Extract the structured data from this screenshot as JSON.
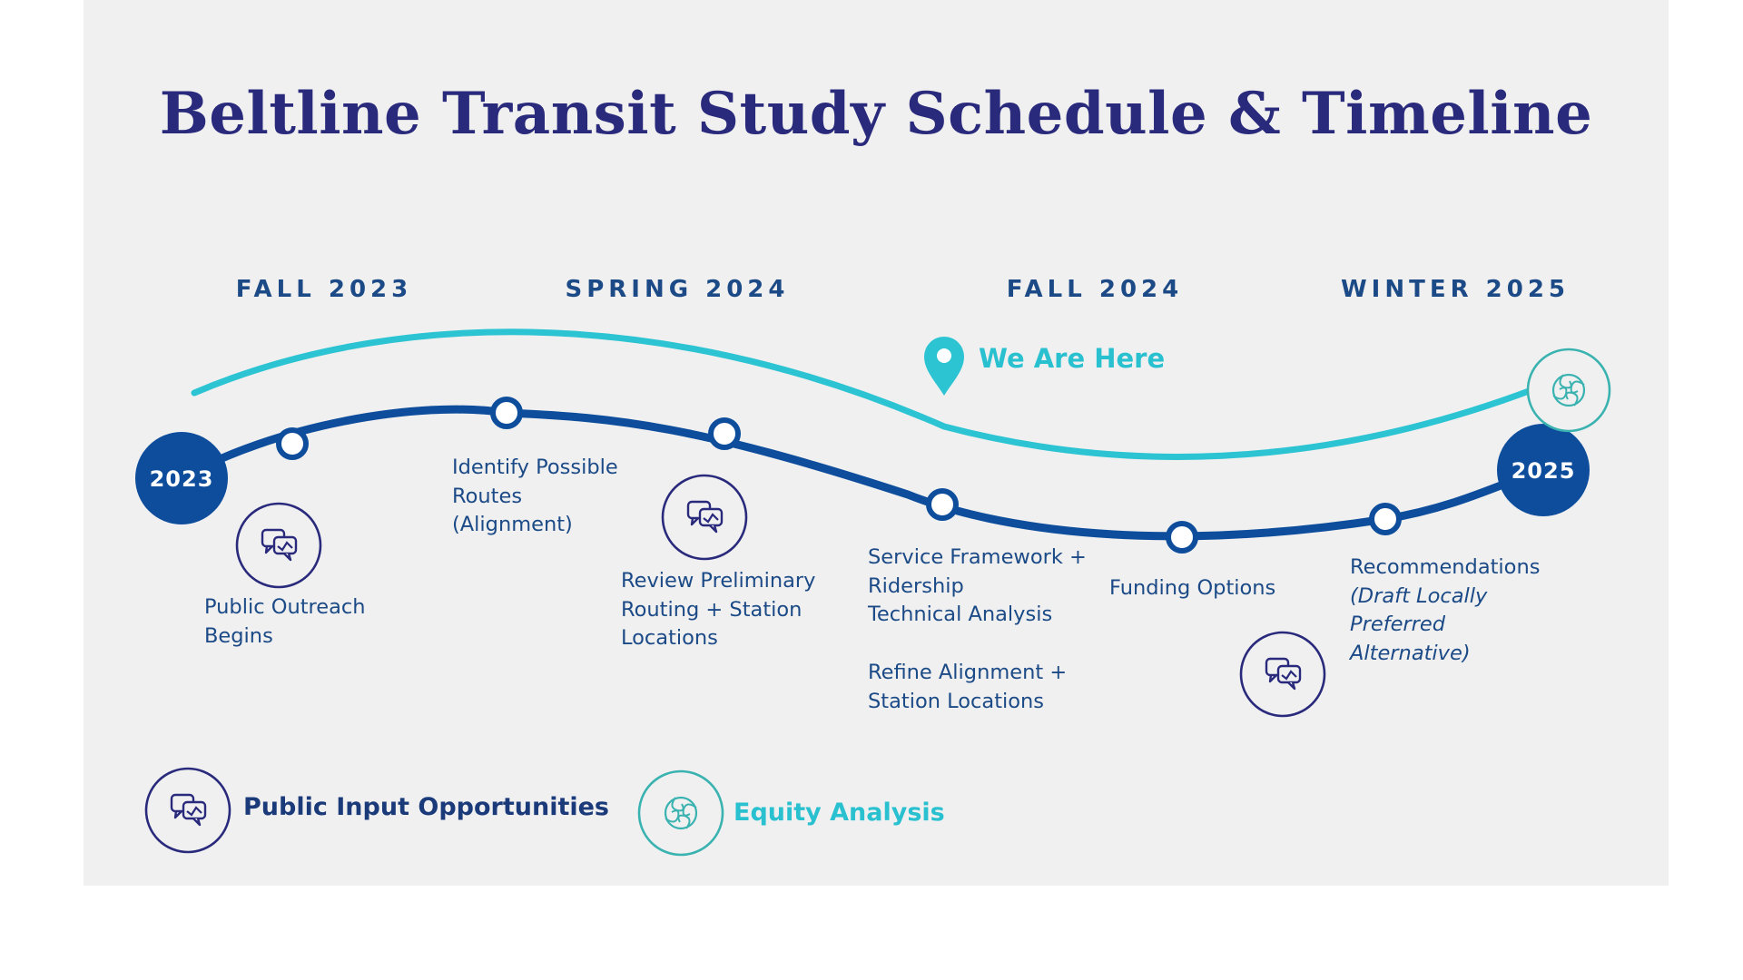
{
  "title": "Beltline Transit Study Schedule & Timeline",
  "seasons": [
    "FALL 2023",
    "SPRING 2024",
    "FALL 2024",
    "WINTER 2025"
  ],
  "years": {
    "start": "2023",
    "end": "2025"
  },
  "marker": {
    "label": "We Are Here"
  },
  "milestones": [
    {
      "lines": [
        "Public Outreach",
        "Begins"
      ]
    },
    {
      "lines": [
        "Identify Possible",
        "Routes",
        "(Alignment)"
      ]
    },
    {
      "lines": [
        "Review Preliminary",
        "Routing + Station",
        "Locations"
      ]
    },
    {
      "lines": [
        "Service Framework +",
        "Ridership",
        "Technical Analysis"
      ]
    },
    {
      "lines": [
        "Refine Alignment +",
        "Station Locations"
      ]
    },
    {
      "lines": [
        "Funding Options"
      ]
    },
    {
      "lines": [
        "Recommendations",
        "(Draft Locally",
        "Preferred",
        "Alternative)"
      ]
    }
  ],
  "legend": {
    "public_input": "Public Input Opportunities",
    "equity": "Equity Analysis"
  },
  "icons": {
    "public_input": "speech-bubbles-icon",
    "equity": "hands-circle-icon",
    "marker": "map-pin-icon"
  },
  "colors": {
    "navy": "#0d4d9c",
    "teal": "#2cc4d2",
    "title": "#2a2a7c",
    "text": "#1b4a86"
  }
}
